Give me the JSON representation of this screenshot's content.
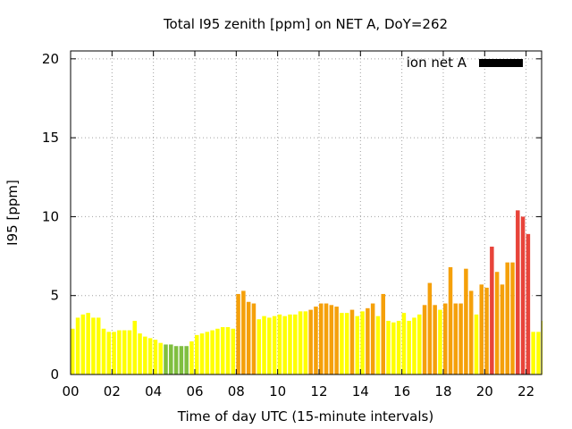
{
  "chart_data": {
    "type": "bar",
    "title": "Total I95 zenith [ppm] on NET A, DoY=262",
    "xlabel": "Time of day UTC (15-minute intervals)",
    "ylabel": "I95 [ppm]",
    "xlim": [
      0,
      22.75
    ],
    "ylim": [
      0,
      20.5
    ],
    "x_ticks": [
      {
        "value": 0,
        "label": "00"
      },
      {
        "value": 2,
        "label": "02"
      },
      {
        "value": 4,
        "label": "04"
      },
      {
        "value": 6,
        "label": "06"
      },
      {
        "value": 8,
        "label": "08"
      },
      {
        "value": 10,
        "label": "10"
      },
      {
        "value": 12,
        "label": "12"
      },
      {
        "value": 14,
        "label": "14"
      },
      {
        "value": 16,
        "label": "16"
      },
      {
        "value": 18,
        "label": "18"
      },
      {
        "value": 20,
        "label": "20"
      },
      {
        "value": 22,
        "label": "22"
      }
    ],
    "y_ticks": [
      {
        "value": 0,
        "label": "0"
      },
      {
        "value": 5,
        "label": "5"
      },
      {
        "value": 10,
        "label": "10"
      },
      {
        "value": 15,
        "label": "15"
      },
      {
        "value": 20,
        "label": "20"
      }
    ],
    "grid": true,
    "legend": {
      "label": "ion net A",
      "position": "top-right",
      "color": "#000000"
    },
    "bin_width_hours": 0.25,
    "colors": {
      "green": "#7fbf3f",
      "yellow": "#ffff00",
      "orange": "#f5a00a",
      "red": "#e8443a"
    },
    "x": [
      0,
      0.25,
      0.5,
      0.75,
      1,
      1.25,
      1.5,
      1.75,
      2,
      2.25,
      2.5,
      2.75,
      3,
      3.25,
      3.5,
      3.75,
      4,
      4.25,
      4.5,
      4.75,
      5,
      5.25,
      5.5,
      5.75,
      6,
      6.25,
      6.5,
      6.75,
      7,
      7.25,
      7.5,
      7.75,
      8,
      8.25,
      8.5,
      8.75,
      9,
      9.25,
      9.5,
      9.75,
      10,
      10.25,
      10.5,
      10.75,
      11,
      11.25,
      11.5,
      11.75,
      12,
      12.25,
      12.5,
      12.75,
      13,
      13.25,
      13.5,
      13.75,
      14,
      14.25,
      14.5,
      14.75,
      15,
      15.25,
      15.5,
      15.75,
      16,
      16.25,
      16.5,
      16.75,
      17,
      17.25,
      17.5,
      17.75,
      18,
      18.25,
      18.5,
      18.75,
      19,
      19.25,
      19.5,
      19.75,
      20,
      20.25,
      20.5,
      20.75,
      21,
      21.25,
      21.5,
      21.75,
      22,
      22.25,
      22.5,
      22.75
    ],
    "values": [
      2.9,
      3.6,
      3.8,
      3.9,
      3.6,
      3.6,
      2.9,
      2.7,
      2.7,
      2.8,
      2.8,
      2.8,
      3.4,
      2.6,
      2.4,
      2.3,
      2.2,
      2.0,
      1.9,
      1.9,
      1.8,
      1.8,
      1.8,
      2.1,
      2.5,
      2.6,
      2.7,
      2.8,
      2.9,
      3.0,
      3.0,
      2.9,
      5.1,
      5.3,
      4.6,
      4.5,
      3.5,
      3.7,
      3.6,
      3.7,
      3.8,
      3.7,
      3.8,
      3.8,
      4.0,
      4.0,
      4.1,
      4.3,
      4.5,
      4.5,
      4.4,
      4.3,
      3.9,
      3.9,
      4.1,
      3.7,
      4.0,
      4.2,
      4.5,
      3.7,
      5.1,
      3.4,
      3.3,
      3.4,
      3.9,
      3.4,
      3.6,
      3.8,
      4.4,
      5.8,
      4.4,
      4.1,
      4.5,
      6.8,
      4.5,
      4.5,
      6.7,
      5.3,
      3.8,
      5.7,
      5.5,
      8.1,
      6.5,
      5.7,
      7.1,
      7.1,
      10.4,
      10.0,
      8.9,
      2.7,
      2.7,
      3.4
    ],
    "bar_colors": [
      "yellow",
      "yellow",
      "yellow",
      "yellow",
      "yellow",
      "yellow",
      "yellow",
      "yellow",
      "yellow",
      "yellow",
      "yellow",
      "yellow",
      "yellow",
      "yellow",
      "yellow",
      "yellow",
      "yellow",
      "yellow",
      "green",
      "green",
      "green",
      "green",
      "green",
      "yellow",
      "yellow",
      "yellow",
      "yellow",
      "yellow",
      "yellow",
      "yellow",
      "yellow",
      "yellow",
      "orange",
      "orange",
      "orange",
      "orange",
      "yellow",
      "yellow",
      "yellow",
      "yellow",
      "yellow",
      "yellow",
      "yellow",
      "yellow",
      "yellow",
      "yellow",
      "orange",
      "orange",
      "orange",
      "orange",
      "orange",
      "orange",
      "yellow",
      "yellow",
      "orange",
      "yellow",
      "yellow",
      "orange",
      "orange",
      "yellow",
      "orange",
      "yellow",
      "yellow",
      "yellow",
      "yellow",
      "yellow",
      "yellow",
      "yellow",
      "orange",
      "orange",
      "orange",
      "yellow",
      "orange",
      "orange",
      "orange",
      "orange",
      "orange",
      "orange",
      "yellow",
      "orange",
      "orange",
      "red",
      "orange",
      "orange",
      "orange",
      "orange",
      "red",
      "red",
      "red",
      "yellow",
      "yellow",
      "yellow"
    ]
  }
}
